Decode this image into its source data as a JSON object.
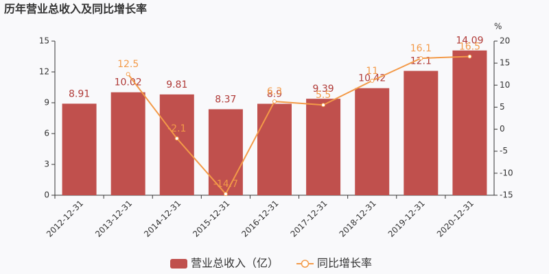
{
  "chart_data": {
    "type": "bar",
    "title": "历年营业总收入及同比增长率",
    "y2_label": "%",
    "categories": [
      "2012-12-31",
      "2013-12-31",
      "2014-12-31",
      "2015-12-31",
      "2016-12-31",
      "2017-12-31",
      "2018-12-31",
      "2019-12-31",
      "2020-12-31"
    ],
    "series": [
      {
        "name": "营业总收入（亿）",
        "type": "bar",
        "color": "#c0504d",
        "values": [
          8.91,
          10.02,
          9.81,
          8.37,
          8.9,
          9.39,
          10.42,
          12.1,
          14.09
        ]
      },
      {
        "name": "同比增长率",
        "type": "line",
        "axis": "y2",
        "color": "#f39a48",
        "values": [
          null,
          12.5,
          -2.1,
          -14.7,
          6.3,
          5.5,
          11,
          16.1,
          16.5
        ]
      }
    ],
    "ylim": [
      0,
      15
    ],
    "yticks": [
      0,
      3,
      6,
      9,
      12,
      15
    ],
    "y2lim": [
      -15,
      20
    ],
    "y2ticks": [
      -15,
      -10,
      -5,
      0,
      5,
      10,
      15,
      20
    ]
  }
}
